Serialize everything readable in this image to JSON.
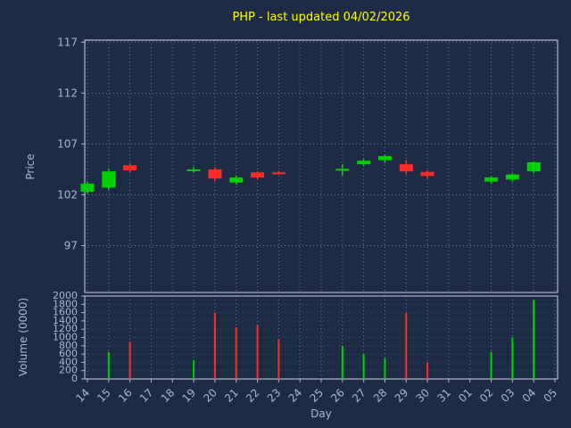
{
  "chart_data": {
    "type": "candlestick",
    "title": "PHP - last updated 04/02/2026",
    "xlabel": "Day",
    "price_ylabel": "Price",
    "volume_ylabel": "Volume (0000)",
    "grid": "dotted",
    "legend": "none",
    "x_categories": [
      "14",
      "15",
      "16",
      "17",
      "18",
      "19",
      "20",
      "21",
      "22",
      "23",
      "24",
      "25",
      "26",
      "27",
      "28",
      "29",
      "30",
      "31",
      "01",
      "02",
      "03",
      "04",
      "05"
    ],
    "price_ticks": [
      97,
      102,
      107,
      112,
      117
    ],
    "price_range": [
      92.4,
      117.2
    ],
    "volume_ticks": [
      0,
      200,
      400,
      600,
      800,
      1000,
      1200,
      1400,
      1600,
      1800,
      2000
    ],
    "volume_range": [
      0,
      2000
    ],
    "candles": [
      {
        "day": "14",
        "open": 102.3,
        "high": 103.3,
        "low": 102.1,
        "close": 103.1
      },
      {
        "day": "15",
        "open": 102.7,
        "high": 104.6,
        "low": 102.5,
        "close": 104.3
      },
      {
        "day": "16",
        "open": 104.9,
        "high": 105.1,
        "low": 104.2,
        "close": 104.4
      },
      {
        "day": "19",
        "open": 104.5,
        "high": 104.75,
        "low": 104.2,
        "close": 104.5
      },
      {
        "day": "20",
        "open": 104.5,
        "high": 104.7,
        "low": 103.3,
        "close": 103.6
      },
      {
        "day": "21",
        "open": 103.2,
        "high": 103.9,
        "low": 103.0,
        "close": 103.7
      },
      {
        "day": "22",
        "open": 104.2,
        "high": 104.3,
        "low": 103.5,
        "close": 103.7
      },
      {
        "day": "23",
        "open": 104.2,
        "high": 104.35,
        "low": 104.0,
        "close": 104.15
      },
      {
        "day": "26",
        "open": 104.4,
        "high": 105.0,
        "low": 103.9,
        "close": 104.55
      },
      {
        "day": "27",
        "open": 105.0,
        "high": 105.5,
        "low": 104.8,
        "close": 105.35
      },
      {
        "day": "28",
        "open": 105.4,
        "high": 105.9,
        "low": 105.1,
        "close": 105.8
      },
      {
        "day": "29",
        "open": 105.0,
        "high": 105.4,
        "low": 104.0,
        "close": 104.3
      },
      {
        "day": "30",
        "open": 104.25,
        "high": 104.4,
        "low": 103.6,
        "close": 103.85
      },
      {
        "day": "02",
        "open": 103.3,
        "high": 103.8,
        "low": 103.1,
        "close": 103.7
      },
      {
        "day": "03",
        "open": 103.5,
        "high": 104.1,
        "low": 103.3,
        "close": 104.0
      },
      {
        "day": "04",
        "open": 104.3,
        "high": 105.3,
        "low": 104.1,
        "close": 105.2
      }
    ],
    "volumes": [
      {
        "day": "15",
        "value": 650,
        "direction": "up"
      },
      {
        "day": "16",
        "value": 900,
        "direction": "down"
      },
      {
        "day": "19",
        "value": 450,
        "direction": "up"
      },
      {
        "day": "20",
        "value": 1600,
        "direction": "down"
      },
      {
        "day": "21",
        "value": 1250,
        "direction": "down"
      },
      {
        "day": "22",
        "value": 1300,
        "direction": "down"
      },
      {
        "day": "23",
        "value": 950,
        "direction": "down"
      },
      {
        "day": "26",
        "value": 800,
        "direction": "up"
      },
      {
        "day": "27",
        "value": 600,
        "direction": "up"
      },
      {
        "day": "28",
        "value": 500,
        "direction": "up"
      },
      {
        "day": "29",
        "value": 1600,
        "direction": "down"
      },
      {
        "day": "30",
        "value": 400,
        "direction": "down"
      },
      {
        "day": "02",
        "value": 650,
        "direction": "up"
      },
      {
        "day": "03",
        "value": 1000,
        "direction": "up"
      },
      {
        "day": "04",
        "value": 1900,
        "direction": "up"
      }
    ],
    "colors": {
      "background": "#1d2b45",
      "title": "#ffff00",
      "axis_text": "#aab8d4",
      "grid": "#9aa5b8",
      "spine": "#cdd5e3",
      "up": "#00d000",
      "down": "#ff2a2a"
    }
  }
}
